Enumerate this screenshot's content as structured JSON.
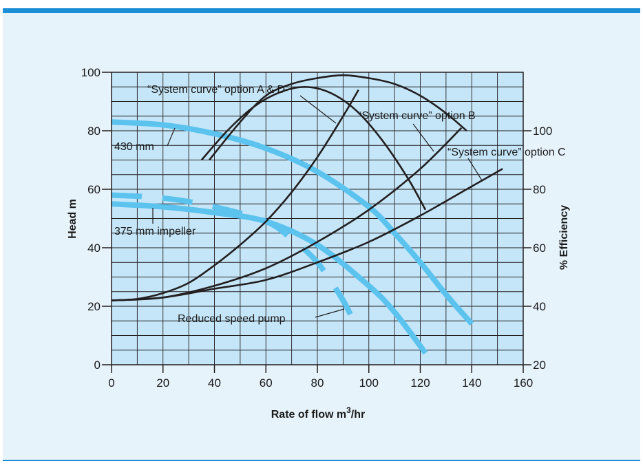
{
  "chart_data": {
    "type": "line",
    "xlabel_main": "Rate of flow m",
    "xlabel_sup": "3",
    "xlabel_tail": "/hr",
    "ylabel": "Head m",
    "y2label": "% Efficiency",
    "xlim": [
      0,
      160
    ],
    "ylim": [
      0,
      100
    ],
    "y2lim": [
      20,
      120
    ],
    "xticks": [
      0,
      20,
      40,
      60,
      80,
      100,
      120,
      140,
      160
    ],
    "yticks": [
      0,
      20,
      40,
      60,
      80,
      100
    ],
    "y2ticks": [
      20,
      40,
      60,
      80,
      100
    ],
    "grid": true,
    "colors": {
      "pump": "#5cc3ef",
      "system": "#231f20",
      "plot_bg": "#c5e6f8",
      "frame": "#1b8fd6"
    },
    "series": [
      {
        "key": "pump430",
        "role": "pump",
        "dashed": false,
        "x": [
          0,
          20,
          40,
          60,
          80,
          100,
          110,
          120,
          130,
          140
        ],
        "y": [
          83,
          82,
          79,
          74,
          66,
          54,
          45,
          35,
          24,
          14
        ]
      },
      {
        "key": "pump375",
        "role": "pump",
        "dashed": false,
        "x": [
          0,
          20,
          40,
          60,
          80,
          100,
          110,
          122
        ],
        "y": [
          55,
          54,
          52,
          49,
          41,
          27,
          18,
          4
        ]
      },
      {
        "key": "reduced",
        "role": "pump",
        "dashed": true,
        "x": [
          0,
          20,
          40,
          60,
          70,
          80,
          90,
          95
        ],
        "y": [
          58,
          57,
          54,
          49,
          43,
          35,
          22,
          13
        ]
      },
      {
        "key": "sysAD",
        "role": "system",
        "dashed": false,
        "x": [
          0,
          10,
          20,
          30,
          40,
          50,
          60,
          70,
          80,
          90,
          96
        ],
        "y": [
          22,
          22.5,
          24.5,
          28,
          34,
          41,
          49,
          59,
          71,
          85,
          94
        ]
      },
      {
        "key": "sysB",
        "role": "system",
        "dashed": false,
        "x": [
          0,
          20,
          40,
          60,
          80,
          100,
          120,
          136
        ],
        "y": [
          22,
          23,
          27,
          33,
          42,
          53,
          67,
          81
        ]
      },
      {
        "key": "sysC",
        "role": "system",
        "dashed": false,
        "x": [
          0,
          20,
          40,
          60,
          80,
          100,
          120,
          140,
          152
        ],
        "y": [
          22,
          23,
          26,
          29,
          35,
          42,
          51,
          61,
          67
        ]
      },
      {
        "key": "eff1",
        "role": "system",
        "dashed": false,
        "x": [
          35,
          45,
          55,
          65,
          75,
          85,
          95,
          105,
          115,
          122
        ],
        "y": [
          70,
          80,
          88,
          93,
          95,
          93,
          87,
          77,
          64,
          53
        ]
      },
      {
        "key": "eff2",
        "role": "system",
        "dashed": false,
        "x": [
          38,
          50,
          60,
          70,
          80,
          90,
          100,
          110,
          120,
          130,
          138
        ],
        "y": [
          70,
          83,
          92,
          96,
          98,
          99,
          98,
          96,
          92,
          86,
          80
        ]
      }
    ],
    "annotations": {
      "sysAD": "“System curve” option A & D",
      "sysB": "“System curve” option B",
      "sysC": "“System curve” option C",
      "pump430": "430 mm",
      "pump375": "375 mm impeller",
      "reduced": "Reduced speed pump"
    }
  }
}
